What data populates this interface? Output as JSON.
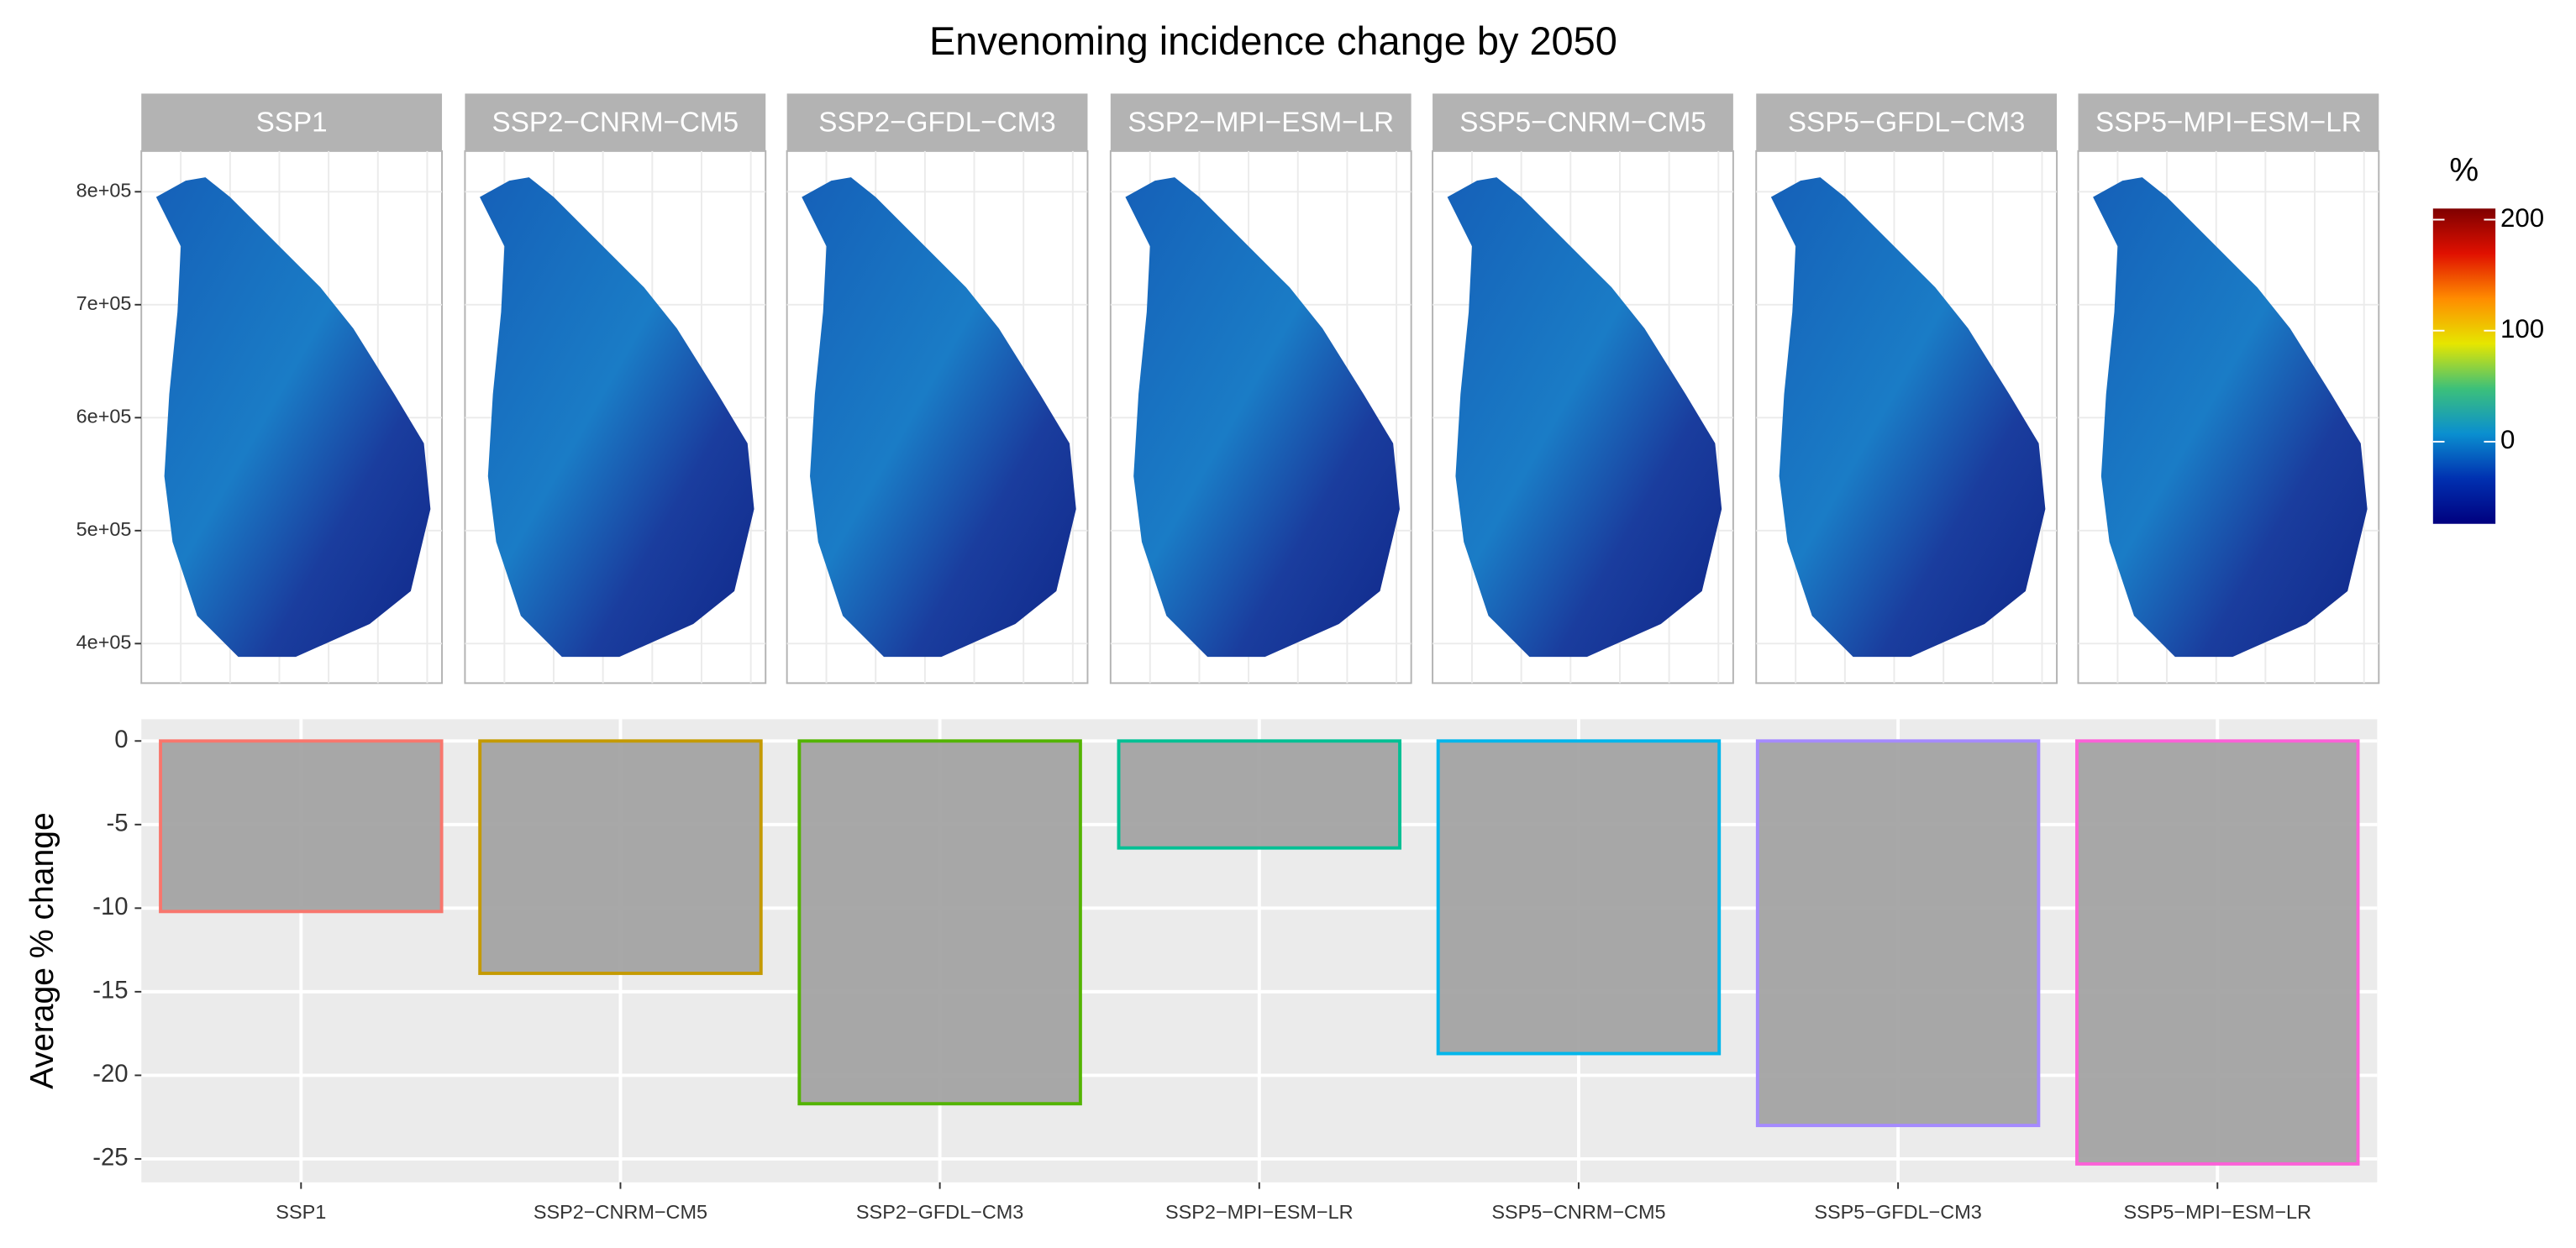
{
  "chart_data": [
    {
      "type": "map",
      "title": "Envenoming incidence change by 2050",
      "facets": [
        "SSP1",
        "SSP2−CNRM−CM5",
        "SSP2−GFDL−CM3",
        "SSP2−MPI−ESM−LR",
        "SSP5−CNRM−CM5",
        "SSP5−GFDL−CM3",
        "SSP5−MPI−ESM−LR"
      ],
      "ylim": [
        365000,
        836000
      ],
      "yticks": [
        {
          "value": 400000,
          "label": "4e+05"
        },
        {
          "value": 500000,
          "label": "5e+05"
        },
        {
          "value": 600000,
          "label": "6e+05"
        },
        {
          "value": 700000,
          "label": "7e+05"
        },
        {
          "value": 800000,
          "label": "8e+05"
        }
      ],
      "grid": true,
      "colorbar": {
        "title": "%",
        "lim": [
          -74,
          210
        ],
        "ticks": [
          0,
          100,
          200
        ],
        "colors": [
          "#00007f",
          "#0030b0",
          "#0a8fd0",
          "#3cc07a",
          "#e6e600",
          "#ff8c00",
          "#e01000",
          "#7f0000"
        ]
      }
    },
    {
      "type": "bar",
      "ylabel": "Average % change",
      "categories": [
        "SSP1",
        "SSP2−CNRM−CM5",
        "SSP2−GFDL−CM3",
        "SSP2−MPI−ESM−LR",
        "SSP5−CNRM−CM5",
        "SSP5−GFDL−CM3",
        "SSP5−MPI−ESM−LR"
      ],
      "values": [
        -10.2,
        -13.9,
        -21.7,
        -6.4,
        -18.7,
        -23.0,
        -25.3
      ],
      "colors": [
        "#F8766D",
        "#C49A00",
        "#53B400",
        "#00C094",
        "#00B6EB",
        "#A58AFF",
        "#FB61D7"
      ],
      "fill": "#a3a3a3",
      "ylim": [
        -26.4,
        1.3
      ],
      "yticks": [
        -25,
        -20,
        -15,
        -10,
        -5,
        0
      ],
      "grid": true
    }
  ]
}
